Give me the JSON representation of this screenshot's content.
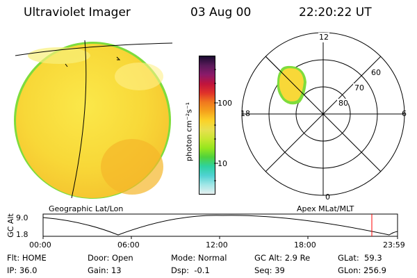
{
  "header": {
    "title": "Ultraviolet Imager",
    "date": "03 Aug 00",
    "time": "22:20:22 UT"
  },
  "colorbar": {
    "label": "photon cm⁻²s⁻¹",
    "ticks": [
      "100",
      "10"
    ],
    "colors": [
      "#1a0a30",
      "#5a1a5a",
      "#8a1a6a",
      "#c0143c",
      "#e0322a",
      "#f0781e",
      "#f5a21c",
      "#fbd228",
      "#e8e050",
      "#c8e632",
      "#96e61e",
      "#50d23c",
      "#2ed2a0",
      "#50d2d2",
      "#a0e6e6",
      "#e6f0f0"
    ]
  },
  "geo_panel": {
    "label": "Geographic Lat/Lon"
  },
  "apex_panel": {
    "label": "Apex MLat/MLT",
    "mlt_labels": {
      "top": "12",
      "right": "6",
      "bottom": "0",
      "left": "18"
    },
    "lat_labels": [
      "60",
      "70",
      "80"
    ]
  },
  "timeline": {
    "ylabel": "GC Alt",
    "y_ticks": [
      "9.0",
      "1.8"
    ],
    "x_ticks": [
      "00:00",
      "06:00",
      "12:00",
      "18:00",
      "23:59"
    ]
  },
  "status": {
    "flt": "Flt: HOME",
    "ip": "IP: 36.0",
    "door": "Door: Open",
    "gain": "Gain: 13",
    "mode": "Mode: Normal",
    "dsp": "Dsp:  -0.1",
    "gcalt": "GC Alt: 2.9 Re",
    "seq": "Seq: 39",
    "glat": "GLat:  59.3",
    "glon": "GLon: 256.9"
  }
}
